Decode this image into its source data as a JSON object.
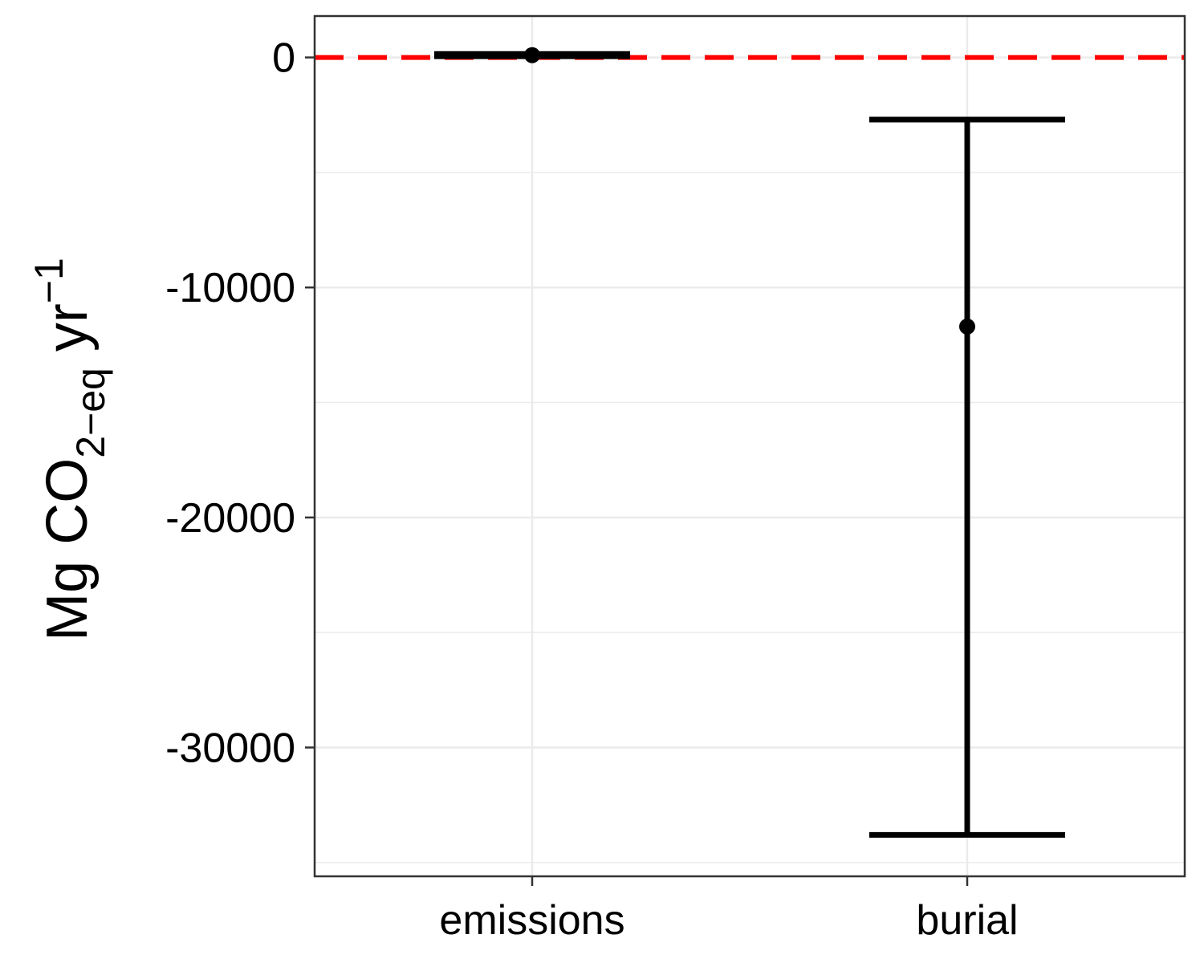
{
  "chart_data": {
    "type": "errorbar",
    "categories": [
      "emissions",
      "burial"
    ],
    "series": [
      {
        "points": [
          {
            "category": "emissions",
            "estimate": 100,
            "lower": 50,
            "upper": 150
          },
          {
            "category": "burial",
            "estimate": -11700,
            "lower": -33800,
            "upper": -2700
          }
        ]
      }
    ],
    "reference_line": {
      "y": 0,
      "color": "#ff0000",
      "style": "dashed"
    },
    "title": "",
    "xlabel": "",
    "ylabel": {
      "base": "Mg CO",
      "subscript": "2−eq",
      "middle": " yr",
      "superscript": "−1"
    },
    "ylim": [
      -35600,
      1800
    ],
    "yticks": [
      0,
      -10000,
      -20000,
      -30000
    ],
    "ytick_labels": [
      "0",
      "-10000",
      "-20000",
      "-30000"
    ],
    "grid": true,
    "colors": {
      "marks": "#000000",
      "reference": "#ff0000",
      "grid": "#ebebeb",
      "border": "#333333"
    }
  }
}
